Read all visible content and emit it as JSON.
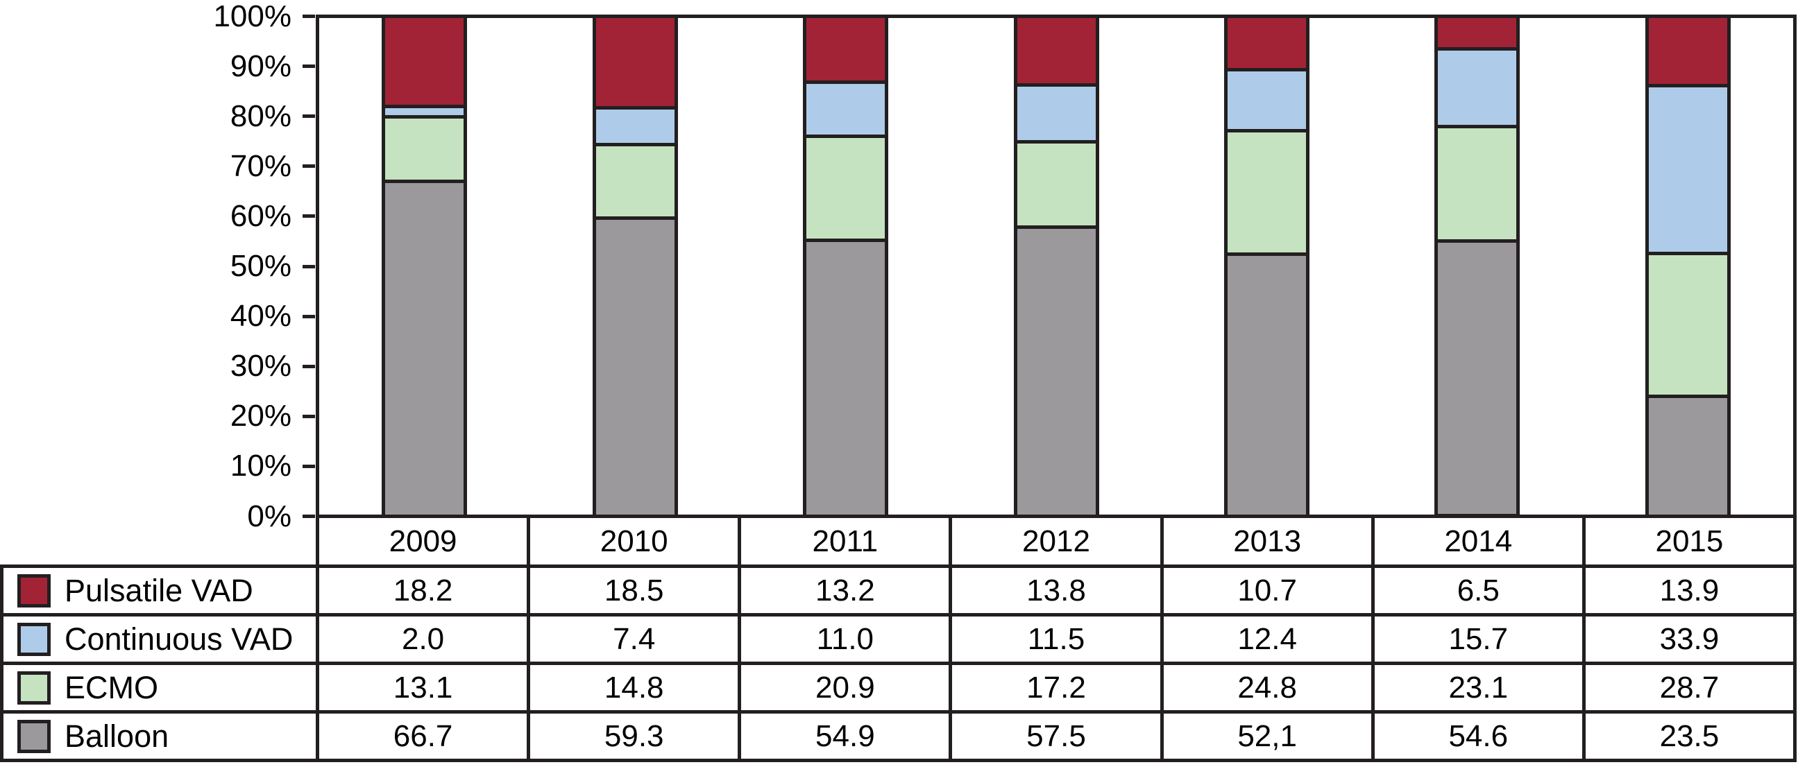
{
  "chart_data": {
    "type": "bar",
    "variant": "stacked-100-percent",
    "title": "",
    "xlabel": "",
    "ylabel": "",
    "grid": false,
    "legend_position": "table-rows-left",
    "categories": [
      "2009",
      "2010",
      "2011",
      "2012",
      "2013",
      "2014",
      "2015"
    ],
    "series": [
      {
        "name": "Pulsatile VAD",
        "color": "#a32336",
        "values": [
          "18.2",
          "18.5",
          "13.2",
          "13.8",
          "10.7",
          "6.5",
          "13.9"
        ]
      },
      {
        "name": "Continuous VAD",
        "color": "#aecce9",
        "values": [
          "2.0",
          "7.4",
          "11.0",
          "11.5",
          "12.4",
          "15.7",
          "33.9"
        ]
      },
      {
        "name": "ECMO",
        "color": "#c5e3c0",
        "values": [
          "13.1",
          "14.8",
          "20.9",
          "17.2",
          "24.8",
          "23.1",
          "28.7"
        ]
      },
      {
        "name": "Balloon",
        "color": "#9b999b",
        "values": [
          "66.7",
          "59.3",
          "54.9",
          "57.5",
          "52,1",
          "54.6",
          "23.5"
        ]
      }
    ],
    "y_axis": {
      "min": 0,
      "max": 100,
      "tick_step": 10,
      "tick_labels": [
        "100%",
        "90%",
        "80%",
        "70%",
        "60%",
        "50%",
        "40%",
        "30%",
        "20%",
        "10%",
        "0%"
      ]
    },
    "line_color": "#231f20",
    "background_color": "#ffffff"
  }
}
